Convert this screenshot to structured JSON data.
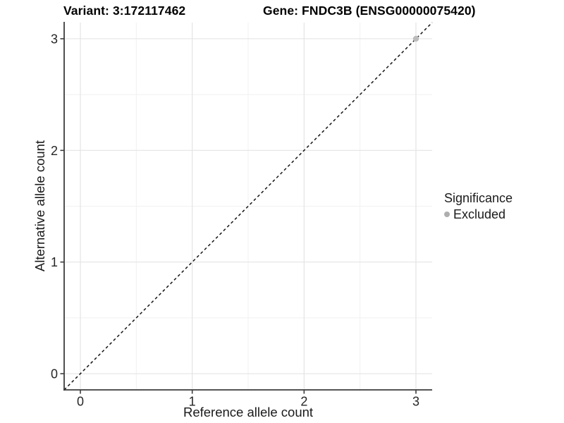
{
  "figure": {
    "background": "#ffffff"
  },
  "chart_data": {
    "type": "scatter",
    "title_left": "Variant: 3:172117462",
    "title_right": "Gene: FNDC3B (ENSG00000075420)",
    "xlabel": "Reference allele count",
    "ylabel": "Alternative allele count",
    "x_ticks": [
      0,
      1,
      2,
      3
    ],
    "y_ticks": [
      0,
      1,
      2,
      3
    ],
    "xlim": [
      -0.145,
      3.145
    ],
    "ylim": [
      -0.145,
      3.145
    ],
    "grid": {
      "major_color": "#e4e4e4",
      "minor_color": "#f1f1f1",
      "minor": "between majors at 0.5 steps"
    },
    "axis_color": "#3c3c3c",
    "tick_label_color": "#262626",
    "identity_line": {
      "style": "dashed",
      "color": "#141414",
      "x1": -0.145,
      "y1": -0.145,
      "x2": 3.145,
      "y2": 3.145
    },
    "points": [
      {
        "x": 3,
        "y": 3,
        "significance": "Excluded",
        "color": "#bcbcbc"
      }
    ],
    "legend": {
      "title": "Significance",
      "position": "right",
      "items": [
        {
          "label": "Excluded",
          "color": "#aeaeae"
        }
      ]
    }
  }
}
